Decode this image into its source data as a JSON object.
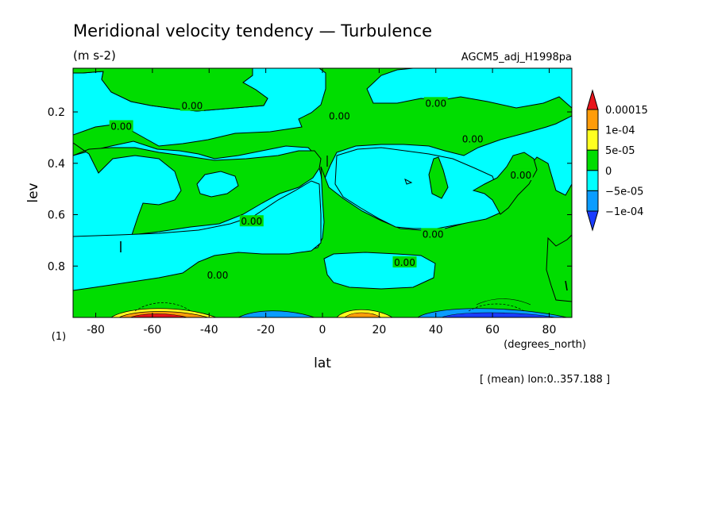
{
  "chart_data": {
    "type": "contour",
    "title": "Meridional velocity tendency — Turbulence",
    "units": "(m s-2)",
    "dataset": "AGCM5_adj_H1998pa",
    "xlabel": "lat",
    "xunits": "(degrees_north)",
    "ylabel": "lev",
    "yunits": "(1)",
    "xlim": [
      -88,
      88
    ],
    "ylim": [
      1.0,
      0.03
    ],
    "x_ticks": [
      "-80",
      "-60",
      "-40",
      "-20",
      "0",
      "20",
      "40",
      "60",
      "80"
    ],
    "x_tick_values": [
      -80,
      -60,
      -40,
      -20,
      0,
      20,
      40,
      60,
      80
    ],
    "y_ticks": [
      "0.2",
      "0.4",
      "0.6",
      "0.8"
    ],
    "y_tick_values": [
      0.2,
      0.4,
      0.6,
      0.8
    ],
    "footnote": "[ (mean) lon:0..357.188 ]",
    "contour_labels": [
      {
        "text": "0.00",
        "lat": -46,
        "lev": 0.18
      },
      {
        "text": "0.00",
        "lat": -71,
        "lev": 0.26
      },
      {
        "text": "0.00",
        "lat": 6,
        "lev": 0.22
      },
      {
        "text": "0.00",
        "lat": 40,
        "lev": 0.17
      },
      {
        "text": "0.00",
        "lat": 53,
        "lev": 0.31
      },
      {
        "text": "0.00",
        "lat": 70,
        "lev": 0.45
      },
      {
        "text": "0.00",
        "lat": -25,
        "lev": 0.63
      },
      {
        "text": "0.00",
        "lat": 39,
        "lev": 0.68
      },
      {
        "text": "0.00",
        "lat": 29,
        "lev": 0.79
      },
      {
        "text": "0.00",
        "lat": -37,
        "lev": 0.84
      }
    ],
    "colorbar": {
      "levels": [
        "0.00015",
        "1e-04",
        "5e-05",
        "0",
        "−5e-05",
        "−1e-04"
      ],
      "colors": [
        "#e8141b",
        "#ff9c0a",
        "#ffff20",
        "#00dd00",
        "#00ffff",
        "#0a9cff",
        "#1a3cff"
      ]
    }
  }
}
